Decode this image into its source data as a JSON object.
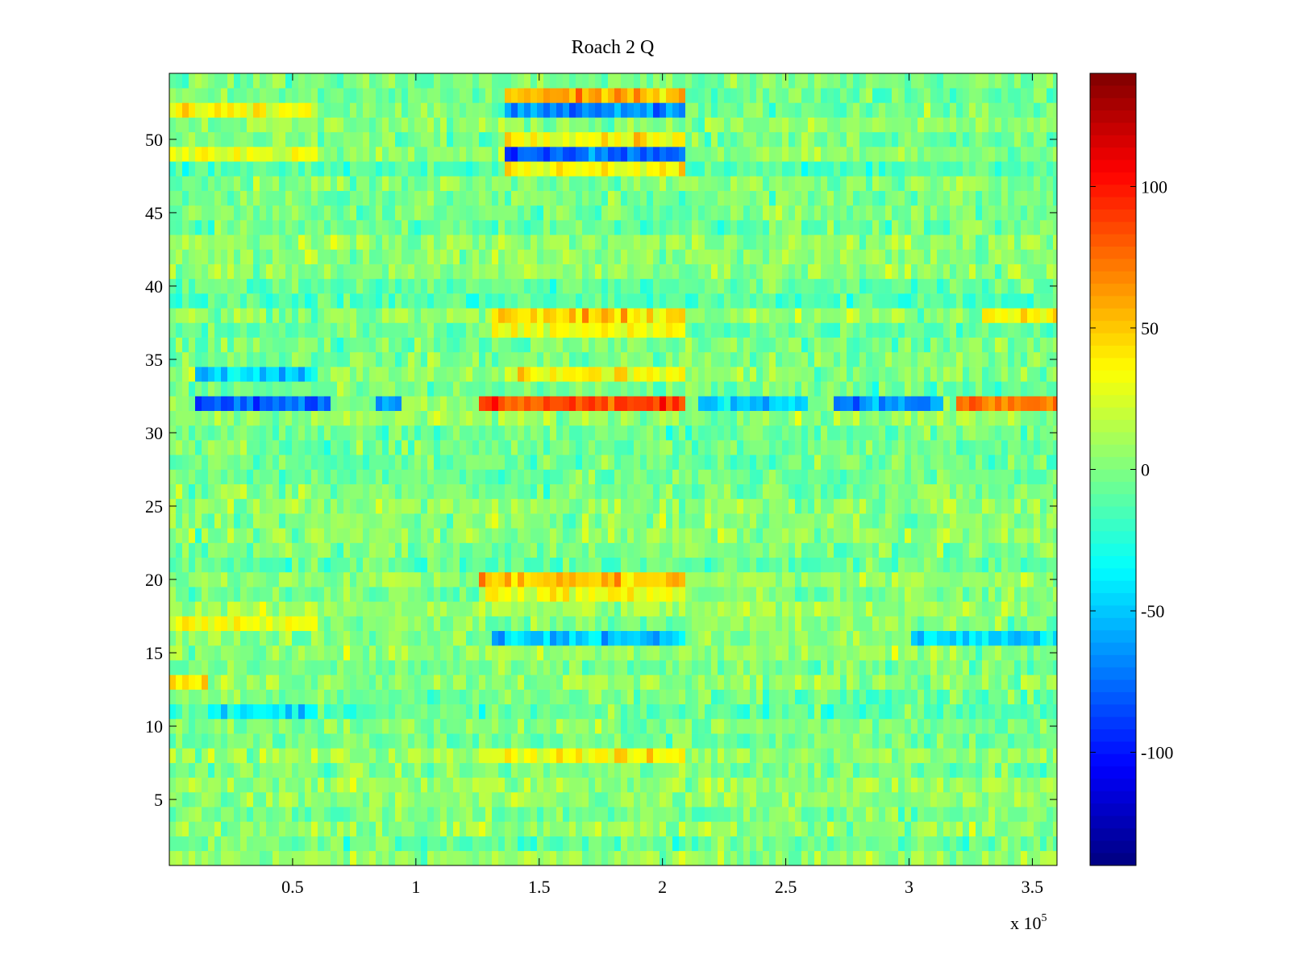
{
  "chart_data": {
    "type": "heatmap",
    "title": "Roach 2 Q",
    "xlabel": "",
    "ylabel": "",
    "x_ticks": [
      0.5,
      1,
      1.5,
      2,
      2.5,
      3,
      3.5
    ],
    "x_tick_labels": [
      "0.5",
      "1",
      "1.5",
      "2",
      "2.5",
      "3",
      "3.5"
    ],
    "x_multiplier_label": "x 10",
    "x_multiplier_exponent": "5",
    "x_scale": 100000,
    "xlim": [
      0,
      360000
    ],
    "y_ticks": [
      5,
      10,
      15,
      20,
      25,
      30,
      35,
      40,
      45,
      50
    ],
    "y_tick_labels": [
      "5",
      "10",
      "15",
      "20",
      "25",
      "30",
      "35",
      "40",
      "45",
      "50"
    ],
    "ylim": [
      0.5,
      54.5
    ],
    "rows": 54,
    "colormap": "jet",
    "color_limits": [
      -140,
      140
    ],
    "colorbar_ticks": [
      -100,
      -50,
      0,
      50,
      100
    ],
    "colorbar_tick_labels": [
      "-100",
      "-50",
      "0",
      "50",
      "100"
    ],
    "background_level": 0,
    "notable_bands": [
      {
        "row": 32,
        "x_range": [
          10000,
          65000
        ],
        "level": -75
      },
      {
        "row": 32,
        "x_range": [
          83000,
          95000
        ],
        "level": -55
      },
      {
        "row": 32,
        "x_range": [
          125000,
          210000
        ],
        "level": 85
      },
      {
        "row": 32,
        "x_range": [
          215000,
          260000
        ],
        "level": -45
      },
      {
        "row": 32,
        "x_range": [
          270000,
          315000
        ],
        "level": -65
      },
      {
        "row": 32,
        "x_range": [
          318000,
          360000
        ],
        "level": 70
      },
      {
        "row": 53,
        "x_range": [
          135000,
          210000
        ],
        "level": 55
      },
      {
        "row": 52,
        "x_range": [
          135000,
          210000
        ],
        "level": -70
      },
      {
        "row": 49,
        "x_range": [
          135000,
          210000
        ],
        "level": -75
      },
      {
        "row": 50,
        "x_range": [
          135000,
          210000
        ],
        "level": 40
      },
      {
        "row": 48,
        "x_range": [
          135000,
          210000
        ],
        "level": 35
      },
      {
        "row": 38,
        "x_range": [
          130000,
          210000
        ],
        "level": 45
      },
      {
        "row": 37,
        "x_range": [
          130000,
          210000
        ],
        "level": 30
      },
      {
        "row": 34,
        "x_range": [
          135000,
          210000
        ],
        "level": 35
      },
      {
        "row": 20,
        "x_range": [
          125000,
          210000
        ],
        "level": 50
      },
      {
        "row": 19,
        "x_range": [
          125000,
          210000
        ],
        "level": 30
      },
      {
        "row": 16,
        "x_range": [
          130000,
          210000
        ],
        "level": -50
      },
      {
        "row": 8,
        "x_range": [
          125000,
          210000
        ],
        "level": 35
      },
      {
        "row": 49,
        "x_range": [
          0,
          60000
        ],
        "level": 30
      },
      {
        "row": 52,
        "x_range": [
          0,
          60000
        ],
        "level": 30
      },
      {
        "row": 34,
        "x_range": [
          10000,
          60000
        ],
        "level": -45
      },
      {
        "row": 17,
        "x_range": [
          0,
          60000
        ],
        "level": 30
      },
      {
        "row": 13,
        "x_range": [
          0,
          15000
        ],
        "level": 40
      },
      {
        "row": 11,
        "x_range": [
          15000,
          60000
        ],
        "level": -40
      },
      {
        "row": 38,
        "x_range": [
          330000,
          360000
        ],
        "level": 40
      },
      {
        "row": 16,
        "x_range": [
          300000,
          360000
        ],
        "level": -45
      }
    ]
  }
}
